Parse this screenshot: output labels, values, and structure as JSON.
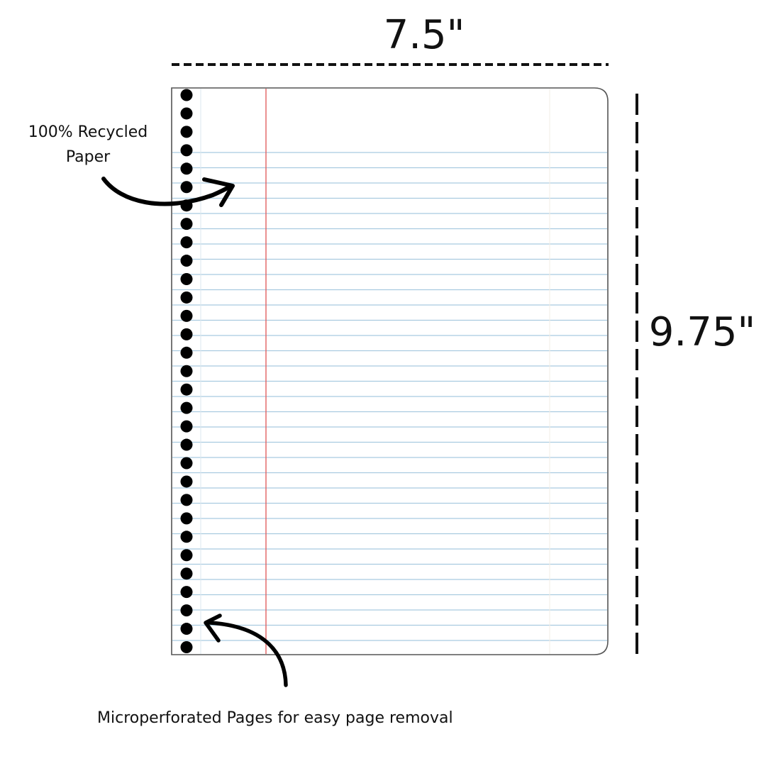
{
  "dimensions": {
    "width_label": "7.5\"",
    "height_label": "9.75\""
  },
  "callouts": {
    "recycled_line1": "100% Recycled",
    "recycled_line2": "Paper",
    "microperforated": "Microperforated Pages for easy page removal"
  },
  "paper": {
    "ruled_line_count": 33,
    "punch_hole_count": 31,
    "colors": {
      "rule": "#a9cbe0",
      "margin": "#e06060",
      "outline": "#555555",
      "hole": "#000000"
    }
  }
}
